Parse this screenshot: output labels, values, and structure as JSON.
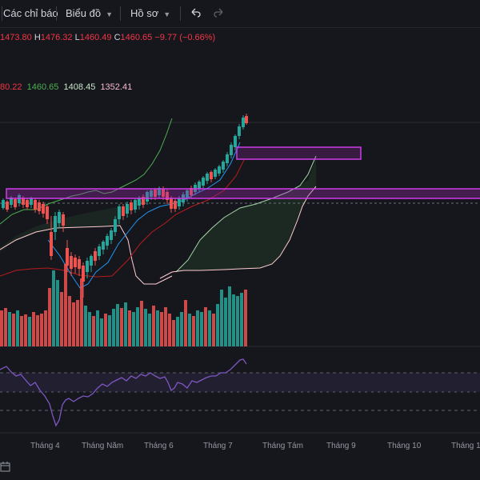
{
  "toolbar": {
    "indicators_label": "Các chỉ báo",
    "chart_label": "Biểu đồ",
    "profile_label": "Hồ sơ",
    "undo_icon": "undo-icon",
    "redo_icon": "redo-icon"
  },
  "ohlc": {
    "open": "1473.80",
    "high_prefix": "H",
    "high": "1476.32",
    "low_prefix": "L",
    "low": "1460.49",
    "close_prefix": "C",
    "close": "1460.65",
    "change": "−9.77 (−0.66%)"
  },
  "indicator_values": [
    {
      "text": "80.22",
      "color": "#f23645"
    },
    {
      "text": "1460.65",
      "color": "#4caf50"
    },
    {
      "text": "1408.45",
      "color": "#c8e6c9"
    },
    {
      "text": "1352.41",
      "color": "#f8bbd0"
    }
  ],
  "time_axis": [
    "Tháng 4",
    "Tháng Năm",
    "Tháng 6",
    "Tháng 7",
    "Tháng Tám",
    "Tháng 9",
    "Tháng 10",
    "Tháng 1"
  ],
  "colors": {
    "up": "#26a69a",
    "down": "#ef5350",
    "zone": "#9c27b0",
    "rsi": "#7e57c2",
    "background": "#16171d"
  }
}
